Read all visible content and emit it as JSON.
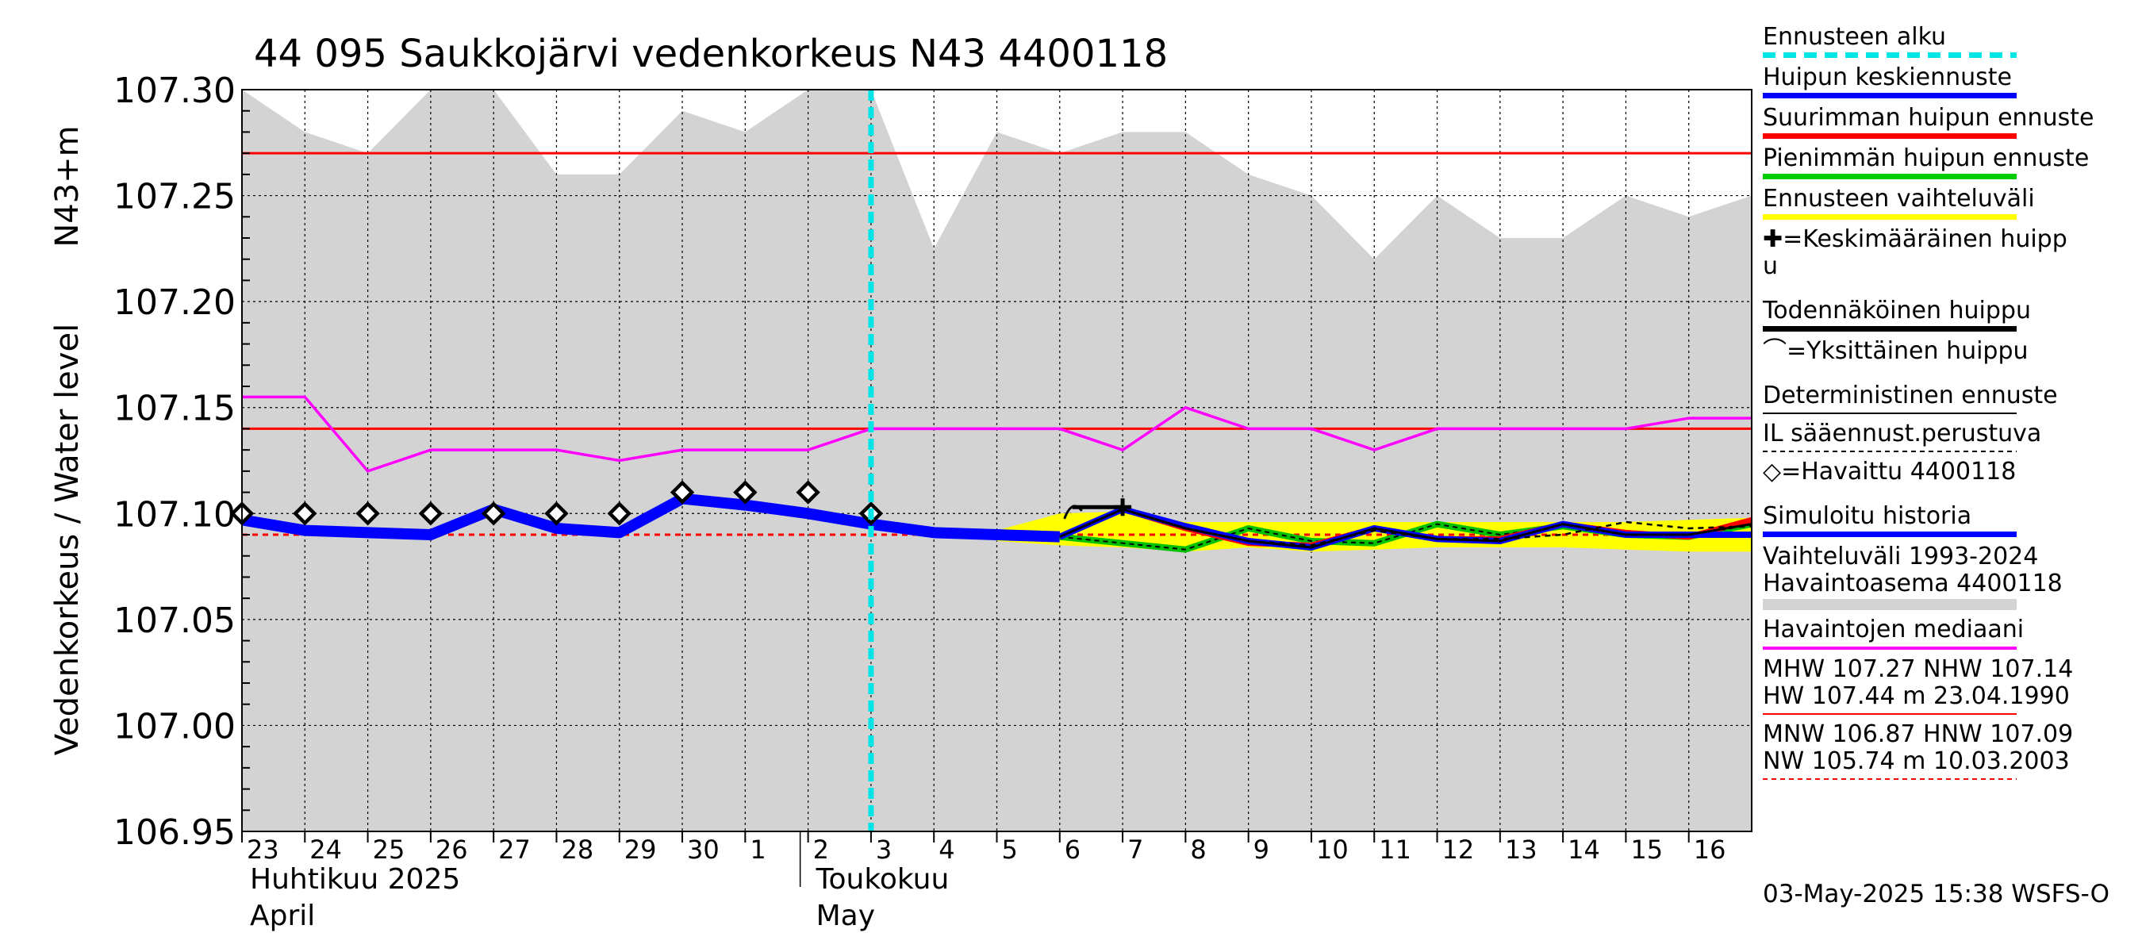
{
  "chart_data": {
    "type": "line",
    "title": "44 095 Saukkojärvi vedenkorkeus N43 4400118",
    "ylabel_left": "Vedenkorkeus / Water level",
    "ylabel_right": "N43+m",
    "ylim": [
      106.95,
      107.3
    ],
    "yticks": [
      106.95,
      107.0,
      107.05,
      107.1,
      107.15,
      107.2,
      107.25,
      107.3
    ],
    "ytick_labels": [
      "106.95",
      "107.00",
      "107.05",
      "107.10",
      "107.15",
      "107.20",
      "107.25",
      "107.30"
    ],
    "xlim": [
      0,
      24
    ],
    "x_tick_labels": [
      "23",
      "24",
      "25",
      "26",
      "27",
      "28",
      "29",
      "30",
      "1",
      "2",
      "3",
      "4",
      "5",
      "6",
      "7",
      "8",
      "9",
      "10",
      "11",
      "12",
      "13",
      "14",
      "15",
      "16"
    ],
    "month_labels": [
      {
        "x": 0,
        "fi": "Huhtikuu  2025",
        "en": "April"
      },
      {
        "x": 9,
        "fi": "Toukokuu",
        "en": "May"
      }
    ],
    "forecast_start_x": 10,
    "series": [
      {
        "name": "Vaihteluväli 1993-2024 upper",
        "color": "#d3d3d3",
        "x": [
          0,
          1,
          2,
          3,
          4,
          5,
          6,
          7,
          8,
          9,
          10,
          11,
          12,
          13,
          14,
          15,
          16,
          17,
          18,
          19,
          20,
          21,
          22,
          23,
          24
        ],
        "values": [
          107.3,
          107.28,
          107.27,
          107.3,
          107.3,
          107.26,
          107.26,
          107.29,
          107.28,
          107.3,
          107.3,
          107.225,
          107.28,
          107.27,
          107.28,
          107.28,
          107.26,
          107.25,
          107.22,
          107.25,
          107.23,
          107.23,
          107.25,
          107.24,
          107.25
        ]
      },
      {
        "name": "Havaintojen mediaani",
        "color": "#ff00ff",
        "x": [
          0,
          1,
          2,
          3,
          4,
          5,
          6,
          7,
          8,
          9,
          10,
          11,
          12,
          13,
          14,
          15,
          16,
          17,
          18,
          19,
          20,
          21,
          22,
          23,
          24
        ],
        "values": [
          107.155,
          107.155,
          107.12,
          107.13,
          107.13,
          107.13,
          107.125,
          107.13,
          107.13,
          107.13,
          107.14,
          107.14,
          107.14,
          107.14,
          107.13,
          107.15,
          107.14,
          107.14,
          107.13,
          107.14,
          107.14,
          107.14,
          107.14,
          107.145,
          107.145
        ]
      },
      {
        "name": "Simuloitu historia",
        "color": "#0000ff",
        "x": [
          0,
          1,
          2,
          3,
          4,
          5,
          6,
          7,
          8,
          9,
          10,
          11,
          12,
          13
        ],
        "values": [
          107.097,
          107.092,
          107.091,
          107.09,
          107.102,
          107.093,
          107.091,
          107.107,
          107.104,
          107.1,
          107.095,
          107.091,
          107.09,
          107.089
        ]
      },
      {
        "name": "Ennusteen vaihteluväli low",
        "color": "#ffff00",
        "x": [
          12,
          13,
          14,
          15,
          16,
          17,
          18,
          19,
          20,
          21,
          22,
          23,
          24
        ],
        "values": [
          107.087,
          107.085,
          107.084,
          107.082,
          107.084,
          107.082,
          107.083,
          107.084,
          107.084,
          107.084,
          107.083,
          107.082,
          107.082
        ]
      },
      {
        "name": "Ennusteen vaihteluväli high",
        "color": "#ffff00",
        "x": [
          12,
          13,
          14,
          15,
          16,
          17,
          18,
          19,
          20,
          21,
          22,
          23,
          24
        ],
        "values": [
          107.092,
          107.1,
          107.101,
          107.096,
          107.096,
          107.096,
          107.096,
          107.096,
          107.096,
          107.096,
          107.096,
          107.097,
          107.098
        ]
      },
      {
        "name": "Suurimman huipun ennuste",
        "color": "#ff0000",
        "x": [
          13,
          14,
          15,
          16,
          17,
          18,
          19,
          20,
          21,
          22,
          23,
          24
        ],
        "values": [
          107.089,
          107.102,
          107.093,
          107.086,
          107.085,
          107.093,
          107.088,
          107.088,
          107.095,
          107.091,
          107.089,
          107.097
        ]
      },
      {
        "name": "Pienimmän huipun ennuste",
        "color": "#00c000",
        "x": [
          13,
          14,
          15,
          16,
          17,
          18,
          19,
          20,
          21,
          22,
          23,
          24
        ],
        "values": [
          107.089,
          107.086,
          107.083,
          107.093,
          107.087,
          107.086,
          107.095,
          107.09,
          107.094,
          107.09,
          107.089,
          107.095
        ]
      },
      {
        "name": "Huipun keskiennuste",
        "color": "#0000ff",
        "x": [
          13,
          14,
          15,
          16,
          17,
          18,
          19,
          20,
          21,
          22,
          23,
          24
        ],
        "values": [
          107.089,
          107.102,
          107.094,
          107.087,
          107.084,
          107.093,
          107.088,
          107.087,
          107.095,
          107.09,
          107.09,
          107.09
        ]
      },
      {
        "name": "Todennäköinen huippu",
        "color": "#000000",
        "x": [
          13,
          14,
          15,
          16,
          17,
          18,
          19,
          20,
          21,
          22,
          23,
          24
        ],
        "values": [
          107.089,
          107.102,
          107.093,
          107.087,
          107.084,
          107.093,
          107.088,
          107.087,
          107.095,
          107.09,
          107.09,
          107.095
        ]
      },
      {
        "name": "IL sääennust.perustuva",
        "color": "#000000",
        "x": [
          16,
          17,
          18,
          19,
          20,
          21,
          22,
          23,
          24
        ],
        "values": [
          107.087,
          107.085,
          107.092,
          107.088,
          107.088,
          107.09,
          107.096,
          107.093,
          107.094
        ]
      },
      {
        "name": "Havaittu 4400118",
        "x": [
          0,
          1,
          2,
          3,
          4,
          5,
          6,
          7,
          8,
          9,
          10
        ],
        "values": [
          107.1,
          107.1,
          107.1,
          107.1,
          107.1,
          107.1,
          107.1,
          107.11,
          107.11,
          107.11,
          107.1
        ]
      }
    ],
    "hlines": [
      {
        "name": "MHW",
        "value": 107.27,
        "color": "#ff0000"
      },
      {
        "name": "NHW",
        "value": 107.14,
        "color": "#ff0000"
      },
      {
        "name": "HNW",
        "value": 107.09,
        "color": "#ff0000",
        "dashed": true
      }
    ],
    "keskimaarainen_huippu": {
      "x": 14,
      "value": 107.103
    },
    "todennakoinen_huippu_bar": {
      "x_start": 13.2,
      "x_end": 14,
      "value": 107.103
    },
    "yksittainen_huippu": {
      "x": 13.2,
      "value": 107.102
    }
  },
  "legend": {
    "items": [
      {
        "label": "Ennusteen alku",
        "color": "#00e5e5",
        "style": "dashed"
      },
      {
        "label": "Huipun keskiennuste",
        "color": "#0000ff",
        "style": "solid"
      },
      {
        "label": "Suurimman huipun ennuste",
        "color": "#ff0000",
        "style": "solid"
      },
      {
        "label": "Pienimmän huipun ennuste",
        "color": "#00cc00",
        "style": "solid"
      },
      {
        "label": "Ennusteen vaihteluväli",
        "color": "#ffff00",
        "style": "solid"
      },
      {
        "label": "✚=Keskimääräinen huipp",
        "label2": "u",
        "color": "",
        "style": "none"
      },
      {
        "label": "Todennäköinen huippu",
        "color": "#000000",
        "style": "solid"
      },
      {
        "label": "⌒=Yksittäinen huippu",
        "color": "",
        "style": "none"
      },
      {
        "label": "Deterministinen ennuste",
        "color": "#000000",
        "style": "thin"
      },
      {
        "label": "IL sääennust.perustuva",
        "color": "#000000",
        "style": "dashed-thin"
      },
      {
        "label": "◇=Havaittu 4400118",
        "color": "",
        "style": "none"
      },
      {
        "label": "Simuloitu historia",
        "color": "#0000ff",
        "style": "solid"
      },
      {
        "label": "Vaihteluväli 1993-2024",
        "label2": " Havaintoasema 4400118",
        "color": "#d3d3d3",
        "style": "solid"
      },
      {
        "label": "Havaintojen mediaani",
        "color": "#ff00ff",
        "style": "thin-mid"
      },
      {
        "label": "MHW 107.27 NHW 107.14",
        "label2": "HW 107.44 m 23.04.1990",
        "color": "#ff0000",
        "style": "thin"
      },
      {
        "label": "MNW 106.87 HNW 107.09",
        "label2": "NW 105.74 m 10.03.2003",
        "color": "#ff0000",
        "style": "dashed-thin"
      }
    ]
  },
  "footer": "03-May-2025 15:38 WSFS-O"
}
